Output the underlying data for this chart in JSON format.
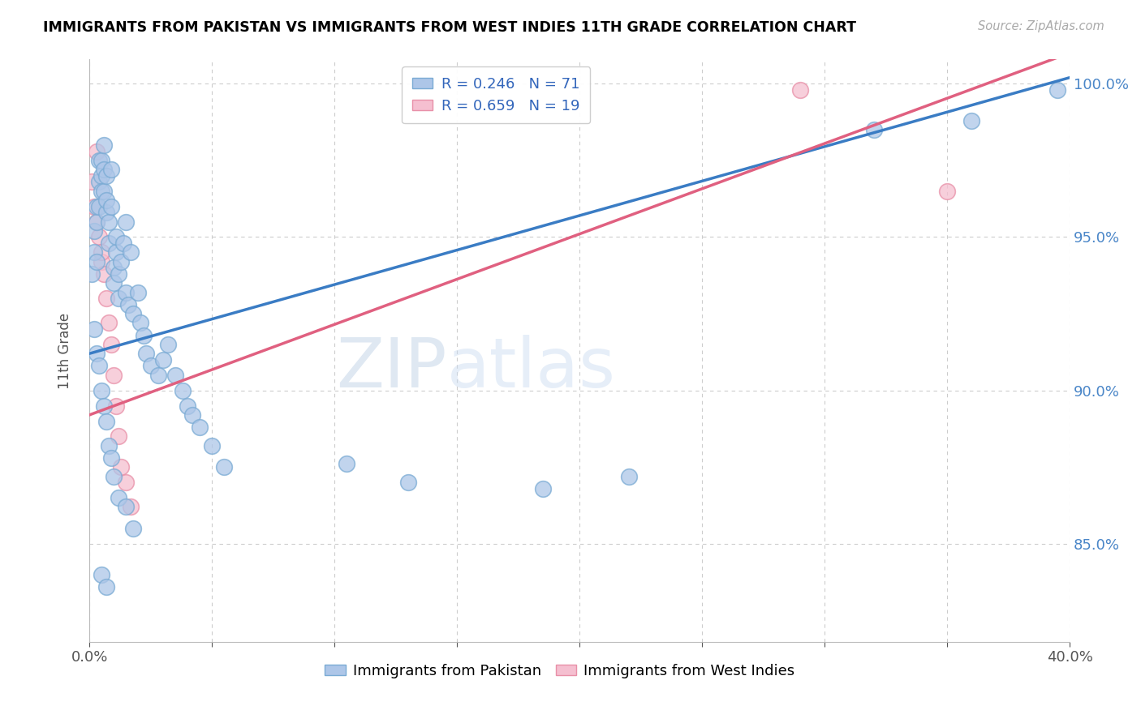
{
  "title": "IMMIGRANTS FROM PAKISTAN VS IMMIGRANTS FROM WEST INDIES 11TH GRADE CORRELATION CHART",
  "source": "Source: ZipAtlas.com",
  "ylabel": "11th Grade",
  "yaxis_labels": [
    "100.0%",
    "95.0%",
    "90.0%",
    "85.0%"
  ],
  "yaxis_values": [
    1.0,
    0.95,
    0.9,
    0.85
  ],
  "xaxis_ticks": [
    0.0,
    0.05,
    0.1,
    0.15,
    0.2,
    0.25,
    0.3,
    0.35,
    0.4
  ],
  "r_pakistan": 0.246,
  "n_pakistan": 71,
  "r_westindies": 0.659,
  "n_westindies": 19,
  "pakistan_color": "#adc6e8",
  "pakistan_edge": "#7aabd4",
  "westindies_color": "#f5bfd0",
  "westindies_edge": "#e890a8",
  "pakistan_line_color": "#3a7cc4",
  "westindies_line_color": "#e06080",
  "background_color": "#ffffff",
  "grid_color": "#cccccc",
  "xlim": [
    0.0,
    0.4
  ],
  "ylim": [
    0.818,
    1.008
  ],
  "pak_line_x0": 0.0,
  "pak_line_y0": 0.912,
  "pak_line_x1": 0.4,
  "pak_line_y1": 1.002,
  "wi_line_x0": 0.0,
  "wi_line_y0": 0.892,
  "wi_line_x1": 0.4,
  "wi_line_y1": 1.01,
  "pakistan_x": [
    0.001,
    0.002,
    0.002,
    0.003,
    0.003,
    0.003,
    0.004,
    0.004,
    0.004,
    0.005,
    0.005,
    0.005,
    0.006,
    0.006,
    0.006,
    0.007,
    0.007,
    0.007,
    0.008,
    0.008,
    0.009,
    0.009,
    0.01,
    0.01,
    0.011,
    0.011,
    0.012,
    0.012,
    0.013,
    0.014,
    0.015,
    0.015,
    0.016,
    0.017,
    0.018,
    0.02,
    0.021,
    0.022,
    0.023,
    0.025,
    0.028,
    0.03,
    0.032,
    0.035,
    0.038,
    0.04,
    0.042,
    0.045,
    0.05,
    0.055,
    0.002,
    0.003,
    0.004,
    0.005,
    0.006,
    0.007,
    0.008,
    0.009,
    0.01,
    0.012,
    0.015,
    0.018,
    0.105,
    0.13,
    0.185,
    0.22,
    0.32,
    0.36,
    0.395,
    0.005,
    0.007
  ],
  "pakistan_y": [
    0.938,
    0.952,
    0.945,
    0.96,
    0.955,
    0.942,
    0.968,
    0.975,
    0.96,
    0.97,
    0.965,
    0.975,
    0.972,
    0.98,
    0.965,
    0.958,
    0.962,
    0.97,
    0.955,
    0.948,
    0.972,
    0.96,
    0.94,
    0.935,
    0.945,
    0.95,
    0.938,
    0.93,
    0.942,
    0.948,
    0.932,
    0.955,
    0.928,
    0.945,
    0.925,
    0.932,
    0.922,
    0.918,
    0.912,
    0.908,
    0.905,
    0.91,
    0.915,
    0.905,
    0.9,
    0.895,
    0.892,
    0.888,
    0.882,
    0.875,
    0.92,
    0.912,
    0.908,
    0.9,
    0.895,
    0.89,
    0.882,
    0.878,
    0.872,
    0.865,
    0.862,
    0.855,
    0.876,
    0.87,
    0.868,
    0.872,
    0.985,
    0.988,
    0.998,
    0.84,
    0.836
  ],
  "westindies_x": [
    0.001,
    0.002,
    0.003,
    0.003,
    0.004,
    0.005,
    0.005,
    0.006,
    0.007,
    0.008,
    0.009,
    0.01,
    0.011,
    0.012,
    0.013,
    0.015,
    0.017,
    0.29,
    0.35
  ],
  "westindies_y": [
    0.968,
    0.96,
    0.978,
    0.955,
    0.95,
    0.942,
    0.945,
    0.938,
    0.93,
    0.922,
    0.915,
    0.905,
    0.895,
    0.885,
    0.875,
    0.87,
    0.862,
    0.998,
    0.965
  ],
  "watermark_zip_color": "#c0d4ee",
  "watermark_atlas_color": "#c8daf0",
  "watermark_fontsize": 62
}
